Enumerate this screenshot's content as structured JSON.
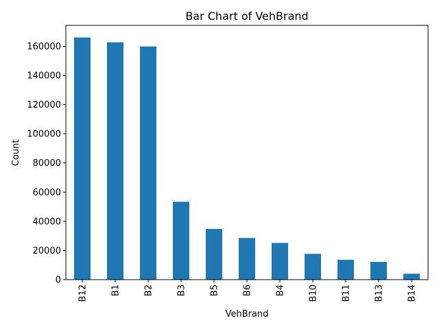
{
  "chart_data": {
    "type": "bar",
    "title": "Bar Chart of VehBrand",
    "xlabel": "VehBrand",
    "ylabel": "Count",
    "categories": [
      "B12",
      "B1",
      "B2",
      "B3",
      "B5",
      "B6",
      "B4",
      "B10",
      "B11",
      "B13",
      "B14"
    ],
    "values": [
      166024,
      162736,
      159861,
      53395,
      34753,
      28548,
      25179,
      17707,
      13585,
      12178,
      4062
    ],
    "ylim": [
      0,
      174325
    ],
    "yticks": [
      0,
      20000,
      40000,
      60000,
      80000,
      100000,
      120000,
      140000,
      160000
    ],
    "grid": false,
    "legend": "none",
    "colors": {
      "bar": "#1f77b4",
      "axis": "#000000",
      "background": "#ffffff"
    }
  }
}
